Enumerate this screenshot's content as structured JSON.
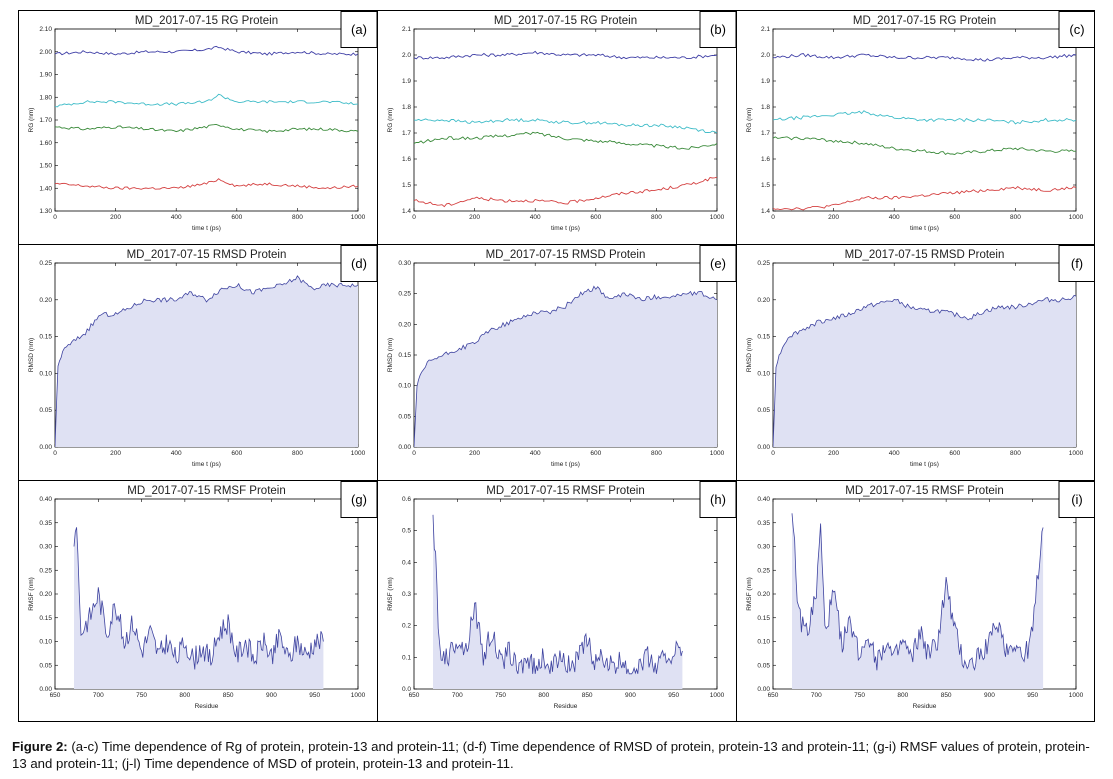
{
  "colors": {
    "blue": "#3f3fa6",
    "cyan": "#3fbcc8",
    "green": "#3a8a3a",
    "red": "#d44040",
    "area_fill": "#dfe1f3",
    "area_line": "#3f44a0"
  },
  "caption": {
    "label": "Figure 2:",
    "text": " (a-c) Time dependence of Rg of protein, protein-13 and protein-11; (d-f) Time dependence of RMSD of protein, protein-13 and protein-11; (g-i) RMSF values of protein, protein-13 and protein-11; (j-l) Time dependence of MSD of protein, protein-13 and protein-11."
  },
  "chart_data": [
    {
      "type": "line",
      "panel_label": "(a)",
      "title": "MD_2017-07-15 RG Protein",
      "xlabel": "time t (ps)",
      "ylabel": "RG (nm)",
      "xlim": [
        0,
        1000
      ],
      "ylim": [
        1.3,
        2.1
      ],
      "xticks": [
        0,
        200,
        400,
        600,
        800,
        1000
      ],
      "yticks": [
        1.3,
        1.4,
        1.5,
        1.6,
        1.7,
        1.8,
        1.9,
        2.0,
        2.1
      ],
      "x": [
        0,
        100,
        200,
        300,
        400,
        500,
        540,
        600,
        700,
        800,
        900,
        1000
      ],
      "series": [
        {
          "color": "blue",
          "values": [
            1.99,
            2.0,
            1.99,
            2.0,
            2.0,
            2.01,
            2.02,
            2.0,
            1.99,
            2.0,
            1.99,
            1.99
          ]
        },
        {
          "color": "cyan",
          "values": [
            1.76,
            1.78,
            1.78,
            1.77,
            1.77,
            1.78,
            1.81,
            1.78,
            1.78,
            1.78,
            1.78,
            1.77
          ]
        },
        {
          "color": "green",
          "values": [
            1.67,
            1.66,
            1.67,
            1.66,
            1.65,
            1.67,
            1.68,
            1.66,
            1.65,
            1.66,
            1.66,
            1.65
          ]
        },
        {
          "color": "red",
          "values": [
            1.42,
            1.41,
            1.4,
            1.4,
            1.4,
            1.42,
            1.44,
            1.41,
            1.42,
            1.41,
            1.4,
            1.41
          ]
        }
      ]
    },
    {
      "type": "line",
      "panel_label": "(b)",
      "title": "MD_2017-07-15 RG Protein",
      "xlabel": "time t (ps)",
      "ylabel": "RG (nm)",
      "xlim": [
        0,
        1000
      ],
      "ylim": [
        1.4,
        2.1
      ],
      "xticks": [
        0,
        200,
        400,
        600,
        800,
        1000
      ],
      "yticks": [
        1.4,
        1.5,
        1.6,
        1.7,
        1.8,
        1.9,
        2.0,
        2.1
      ],
      "x": [
        0,
        100,
        200,
        300,
        400,
        500,
        600,
        700,
        800,
        900,
        1000
      ],
      "series": [
        {
          "color": "blue",
          "values": [
            1.99,
            1.99,
            2.0,
            2.0,
            2.01,
            2.0,
            2.0,
            1.99,
            1.99,
            1.99,
            2.0
          ]
        },
        {
          "color": "cyan",
          "values": [
            1.75,
            1.75,
            1.74,
            1.75,
            1.75,
            1.74,
            1.74,
            1.73,
            1.73,
            1.72,
            1.7
          ]
        },
        {
          "color": "green",
          "values": [
            1.66,
            1.68,
            1.68,
            1.69,
            1.7,
            1.68,
            1.67,
            1.66,
            1.65,
            1.64,
            1.66
          ]
        },
        {
          "color": "red",
          "values": [
            1.44,
            1.42,
            1.45,
            1.44,
            1.44,
            1.43,
            1.45,
            1.47,
            1.48,
            1.5,
            1.53
          ]
        }
      ]
    },
    {
      "type": "line",
      "panel_label": "(c)",
      "title": "MD_2017-07-15 RG Protein",
      "xlabel": "time t (ps)",
      "ylabel": "RG (nm)",
      "xlim": [
        0,
        1000
      ],
      "ylim": [
        1.4,
        2.1
      ],
      "xticks": [
        0,
        200,
        400,
        600,
        800,
        1000
      ],
      "yticks": [
        1.4,
        1.5,
        1.6,
        1.7,
        1.8,
        1.9,
        2.0,
        2.1
      ],
      "x": [
        0,
        100,
        200,
        300,
        400,
        500,
        600,
        700,
        800,
        900,
        1000
      ],
      "series": [
        {
          "color": "blue",
          "values": [
            1.99,
            2.0,
            1.99,
            2.0,
            1.99,
            1.99,
            1.99,
            1.98,
            1.99,
            1.99,
            2.0
          ]
        },
        {
          "color": "cyan",
          "values": [
            1.75,
            1.76,
            1.77,
            1.78,
            1.76,
            1.75,
            1.75,
            1.75,
            1.74,
            1.75,
            1.75
          ]
        },
        {
          "color": "green",
          "values": [
            1.68,
            1.68,
            1.67,
            1.66,
            1.64,
            1.63,
            1.62,
            1.63,
            1.64,
            1.63,
            1.63
          ]
        },
        {
          "color": "red",
          "values": [
            1.41,
            1.41,
            1.42,
            1.45,
            1.45,
            1.46,
            1.47,
            1.48,
            1.49,
            1.48,
            1.49
          ]
        }
      ]
    },
    {
      "type": "area",
      "panel_label": "(d)",
      "title": "MD_2017-07-15 RMSD Protein",
      "xlabel": "time t (ps)",
      "ylabel": "RMSD (nm)",
      "xlim": [
        0,
        1000
      ],
      "ylim": [
        0,
        0.25
      ],
      "xticks": [
        0,
        200,
        400,
        600,
        800,
        1000
      ],
      "yticks": [
        0.0,
        0.05,
        0.1,
        0.15,
        0.2,
        0.25
      ],
      "x": [
        0,
        10,
        25,
        50,
        100,
        150,
        200,
        250,
        300,
        350,
        400,
        450,
        500,
        550,
        600,
        650,
        700,
        750,
        800,
        850,
        900,
        950,
        1000
      ],
      "values": [
        0.0,
        0.11,
        0.13,
        0.14,
        0.155,
        0.18,
        0.18,
        0.19,
        0.2,
        0.2,
        0.2,
        0.21,
        0.2,
        0.215,
        0.22,
        0.21,
        0.215,
        0.22,
        0.23,
        0.215,
        0.22,
        0.22,
        0.22
      ]
    },
    {
      "type": "area",
      "panel_label": "(e)",
      "title": "MD_2017-07-15 RMSD Protein",
      "xlabel": "time t (ps)",
      "ylabel": "RMSD (nm)",
      "xlim": [
        0,
        1000
      ],
      "ylim": [
        0,
        0.3
      ],
      "xticks": [
        0,
        200,
        400,
        600,
        800,
        1000
      ],
      "yticks": [
        0.0,
        0.05,
        0.1,
        0.15,
        0.2,
        0.25,
        0.3
      ],
      "x": [
        0,
        10,
        25,
        50,
        100,
        150,
        200,
        250,
        300,
        350,
        400,
        450,
        500,
        550,
        600,
        650,
        700,
        750,
        800,
        850,
        900,
        950,
        1000
      ],
      "values": [
        0.0,
        0.1,
        0.12,
        0.14,
        0.15,
        0.16,
        0.17,
        0.19,
        0.2,
        0.21,
        0.22,
        0.22,
        0.23,
        0.25,
        0.26,
        0.24,
        0.25,
        0.24,
        0.245,
        0.245,
        0.25,
        0.25,
        0.24
      ]
    },
    {
      "type": "area",
      "panel_label": "(f)",
      "title": "MD_2017-07-15 RMSD Protein",
      "xlabel": "time t (ps)",
      "ylabel": "RMSD (nm)",
      "xlim": [
        0,
        1000
      ],
      "ylim": [
        0,
        0.25
      ],
      "xticks": [
        0,
        200,
        400,
        600,
        800,
        1000
      ],
      "yticks": [
        0.0,
        0.05,
        0.1,
        0.15,
        0.2,
        0.25
      ],
      "x": [
        0,
        10,
        25,
        50,
        100,
        150,
        200,
        250,
        300,
        350,
        400,
        450,
        500,
        550,
        600,
        650,
        700,
        750,
        800,
        850,
        900,
        950,
        1000
      ],
      "values": [
        0.0,
        0.11,
        0.13,
        0.15,
        0.16,
        0.17,
        0.175,
        0.18,
        0.19,
        0.195,
        0.2,
        0.19,
        0.185,
        0.185,
        0.18,
        0.175,
        0.185,
        0.19,
        0.19,
        0.195,
        0.2,
        0.2,
        0.205
      ]
    },
    {
      "type": "area",
      "panel_label": "(g)",
      "title": "MD_2017-07-15 RMSF Protein",
      "xlabel": "Residue",
      "ylabel": "RMSF (nm)",
      "xlim": [
        650,
        1000
      ],
      "ylim": [
        0,
        0.4
      ],
      "xticks": [
        650,
        700,
        750,
        800,
        850,
        900,
        950,
        1000
      ],
      "yticks": [
        0.0,
        0.05,
        0.1,
        0.15,
        0.2,
        0.25,
        0.3,
        0.35,
        0.4
      ],
      "x": [
        672,
        675,
        678,
        680,
        690,
        700,
        710,
        720,
        730,
        740,
        750,
        760,
        770,
        780,
        790,
        800,
        810,
        820,
        830,
        840,
        850,
        860,
        870,
        880,
        890,
        900,
        910,
        920,
        930,
        940,
        950,
        960
      ],
      "values": [
        0.3,
        0.36,
        0.2,
        0.12,
        0.15,
        0.2,
        0.12,
        0.18,
        0.1,
        0.14,
        0.08,
        0.12,
        0.07,
        0.1,
        0.06,
        0.1,
        0.06,
        0.09,
        0.06,
        0.12,
        0.14,
        0.07,
        0.1,
        0.06,
        0.1,
        0.07,
        0.11,
        0.06,
        0.1,
        0.07,
        0.1,
        0.1
      ]
    },
    {
      "type": "area",
      "panel_label": "(h)",
      "title": "MD_2017-07-15 RMSF Protein",
      "xlabel": "Residue",
      "ylabel": "RMSF (nm)",
      "xlim": [
        650,
        1000
      ],
      "ylim": [
        0,
        0.6
      ],
      "xticks": [
        650,
        700,
        750,
        800,
        850,
        900,
        950,
        1000
      ],
      "yticks": [
        0.0,
        0.1,
        0.2,
        0.3,
        0.4,
        0.5,
        0.6
      ],
      "x": [
        672,
        675,
        678,
        680,
        690,
        700,
        710,
        720,
        730,
        740,
        750,
        760,
        770,
        780,
        790,
        800,
        810,
        820,
        830,
        840,
        850,
        860,
        870,
        880,
        890,
        900,
        910,
        920,
        930,
        940,
        950,
        960
      ],
      "values": [
        0.55,
        0.4,
        0.2,
        0.12,
        0.1,
        0.16,
        0.12,
        0.27,
        0.1,
        0.18,
        0.08,
        0.12,
        0.06,
        0.1,
        0.06,
        0.1,
        0.06,
        0.12,
        0.07,
        0.1,
        0.15,
        0.08,
        0.1,
        0.06,
        0.09,
        0.06,
        0.08,
        0.1,
        0.07,
        0.1,
        0.12,
        0.12
      ]
    },
    {
      "type": "area",
      "panel_label": "(i)",
      "title": "MD_2017-07-15 RMSF Protein",
      "xlabel": "Residue",
      "ylabel": "RMSF (nm)",
      "xlim": [
        650,
        1000
      ],
      "ylim": [
        0,
        0.4
      ],
      "xticks": [
        650,
        700,
        750,
        800,
        850,
        900,
        950,
        1000
      ],
      "yticks": [
        0.0,
        0.05,
        0.1,
        0.15,
        0.2,
        0.25,
        0.3,
        0.35,
        0.4
      ],
      "x": [
        672,
        675,
        678,
        680,
        690,
        700,
        705,
        710,
        720,
        730,
        740,
        750,
        760,
        770,
        780,
        790,
        800,
        810,
        820,
        830,
        840,
        850,
        860,
        870,
        880,
        890,
        900,
        910,
        920,
        930,
        940,
        950,
        958,
        962
      ],
      "values": [
        0.37,
        0.3,
        0.2,
        0.15,
        0.12,
        0.2,
        0.34,
        0.12,
        0.2,
        0.1,
        0.14,
        0.07,
        0.12,
        0.06,
        0.1,
        0.06,
        0.1,
        0.06,
        0.12,
        0.07,
        0.1,
        0.22,
        0.12,
        0.06,
        0.05,
        0.08,
        0.1,
        0.14,
        0.08,
        0.1,
        0.06,
        0.12,
        0.28,
        0.34
      ]
    }
  ]
}
